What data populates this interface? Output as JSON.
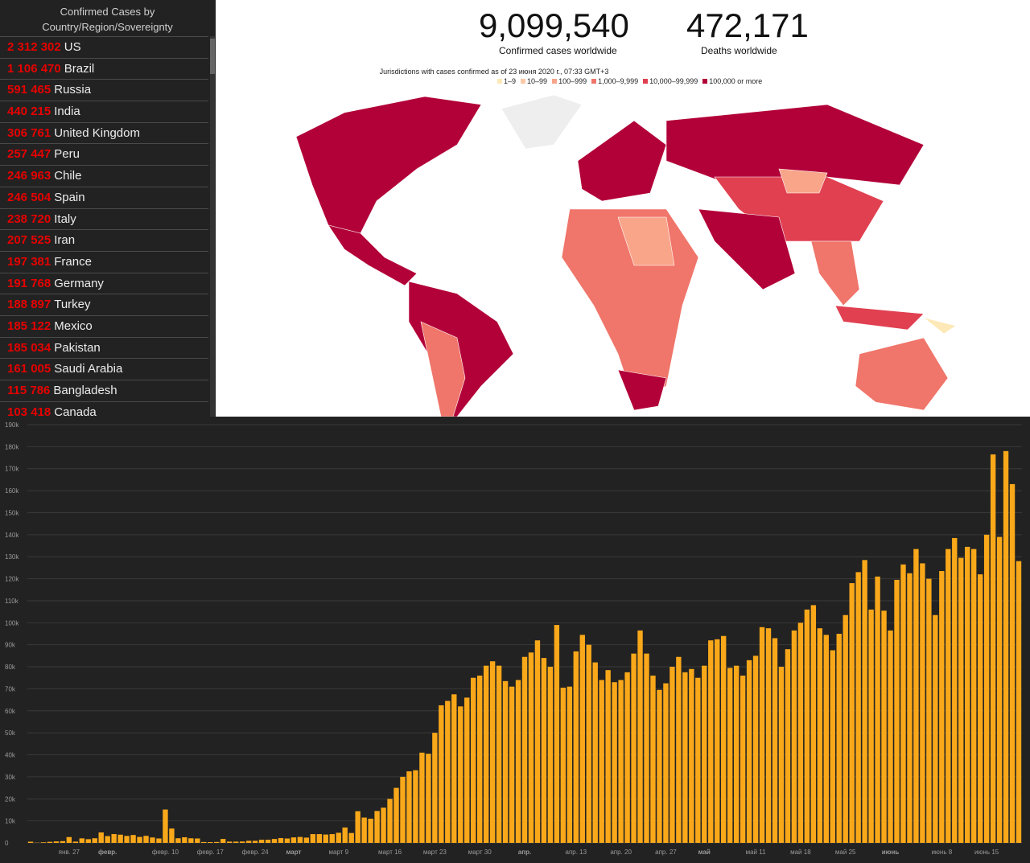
{
  "sidebar": {
    "title": "Confirmed Cases by Country/Region/Sovereignty",
    "rows": [
      [
        "2 312 302",
        "US"
      ],
      [
        "1 106 470",
        "Brazil"
      ],
      [
        "591 465",
        "Russia"
      ],
      [
        "440 215",
        "India"
      ],
      [
        "306 761",
        "United Kingdom"
      ],
      [
        "257 447",
        "Peru"
      ],
      [
        "246 963",
        "Chile"
      ],
      [
        "246 504",
        "Spain"
      ],
      [
        "238 720",
        "Italy"
      ],
      [
        "207 525",
        "Iran"
      ],
      [
        "197 381",
        "France"
      ],
      [
        "191 768",
        "Germany"
      ],
      [
        "188 897",
        "Turkey"
      ],
      [
        "185 122",
        "Mexico"
      ],
      [
        "185 034",
        "Pakistan"
      ],
      [
        "161 005",
        "Saudi Arabia"
      ],
      [
        "115 786",
        "Bangladesh"
      ],
      [
        "103 418",
        "Canada"
      ]
    ]
  },
  "header": {
    "cases": "9,099,540",
    "cases_label": "Confirmed cases worldwide",
    "deaths": "472,171",
    "deaths_label": "Deaths worldwide",
    "legend_title": "Jurisdictions with cases confirmed as of 23 июня 2020 г., 07:33 GMT+3",
    "legend": [
      {
        "label": "1–9",
        "color": "#fde9b8"
      },
      {
        "label": "10–99",
        "color": "#fcc9a6"
      },
      {
        "label": "100–999",
        "color": "#f8a58a"
      },
      {
        "label": "1,000–9,999",
        "color": "#f0756a"
      },
      {
        "label": "10,000–99,999",
        "color": "#e04050"
      },
      {
        "label": "100,000 or more",
        "color": "#b20038"
      }
    ]
  },
  "chart_data": {
    "type": "bar",
    "color": "#f9a81a",
    "grid": true,
    "categories": [
      null,
      null,
      null,
      null,
      null,
      null,
      "янв. 27",
      null,
      null,
      null,
      null,
      null,
      "февр.",
      null,
      null,
      null,
      null,
      null,
      null,
      null,
      null,
      "февр. 10",
      null,
      null,
      null,
      null,
      null,
      null,
      "февр. 17",
      null,
      null,
      null,
      null,
      null,
      null,
      "февр. 24",
      null,
      null,
      null,
      null,
      null,
      "март",
      null,
      null,
      null,
      null,
      null,
      null,
      "март 9",
      null,
      null,
      null,
      null,
      null,
      null,
      null,
      "март 16",
      null,
      null,
      null,
      null,
      null,
      null,
      "март 23",
      null,
      null,
      null,
      null,
      null,
      null,
      "март 30",
      null,
      null,
      null,
      null,
      null,
      null,
      "апр.",
      null,
      null,
      null,
      null,
      null,
      null,
      null,
      "апр. 13",
      null,
      null,
      null,
      null,
      null,
      null,
      "апр. 20",
      null,
      null,
      null,
      null,
      null,
      null,
      "апр. 27",
      null,
      null,
      null,
      null,
      null,
      "май",
      null,
      null,
      null,
      null,
      null,
      null,
      null,
      "май 11",
      null,
      null,
      null,
      null,
      null,
      null,
      "май 18",
      null,
      null,
      null,
      null,
      null,
      null,
      "май 25",
      null,
      null,
      null,
      null,
      null,
      null,
      "июнь",
      null,
      null,
      null,
      null,
      null,
      null,
      null,
      "июнь 8",
      null,
      null,
      null,
      null,
      null,
      null,
      "июнь 15",
      null,
      null,
      null,
      null,
      null
    ],
    "values": [
      555,
      99,
      287,
      493,
      684,
      809,
      2651,
      588,
      2068,
      1693,
      2111,
      4749,
      3094,
      4011,
      3741,
      3160,
      3592,
      2716,
      3210,
      2467,
      2015,
      15153,
      6526,
      2113,
      2562,
      2098,
      2017,
      410,
      365,
      426,
      1793,
      602,
      581,
      640,
      944,
      947,
      1421,
      1431,
      1781,
      2200,
      2000,
      2500,
      2700,
      2400,
      4000,
      4000,
      3800,
      4000,
      4600,
      7000,
      4500,
      14400,
      11500,
      11000,
      14500,
      16000,
      20000,
      25000,
      30000,
      32500,
      33000,
      41000,
      40500,
      50000,
      62500,
      64500,
      67500,
      62000,
      66000,
      75000,
      76000,
      80500,
      82500,
      80500,
      73500,
      71000,
      74000,
      84500,
      86500,
      92000,
      84000,
      80000,
      99000,
      70500,
      71000,
      87000,
      94500,
      90000,
      82000,
      74000,
      78500,
      73000,
      74000,
      77500,
      86000,
      96500,
      86000,
      76000,
      69500,
      72500,
      80000,
      84500,
      77500,
      79000,
      75000,
      80500,
      92000,
      92500,
      94000,
      79500,
      80500,
      76000,
      83000,
      85000,
      98000,
      97500,
      93000,
      80000,
      88000,
      96500,
      100000,
      106000,
      108000,
      97500,
      94500,
      87500,
      95000,
      103500,
      118000,
      123000,
      128500,
      106000,
      121000,
      105500,
      96500,
      119500,
      126500,
      122500,
      133500,
      127000,
      120000,
      103500,
      123500,
      133500,
      138500,
      129500,
      134500,
      133500,
      122000,
      140000,
      176500,
      139000,
      178000,
      163000,
      128000
    ],
    "ylim": [
      0,
      190000
    ],
    "yticks": [
      0,
      {
        "value": 10000,
        "label": "10k"
      },
      {
        "value": 20000,
        "label": "20k"
      },
      {
        "value": 30000,
        "label": "30k"
      },
      {
        "value": 40000,
        "label": "40k"
      },
      {
        "value": 50000,
        "label": "50k"
      },
      {
        "value": 60000,
        "label": "60k"
      },
      {
        "value": 70000,
        "label": "70k"
      },
      {
        "value": 80000,
        "label": "80k"
      },
      {
        "value": 90000,
        "label": "90k"
      },
      {
        "value": 100000,
        "label": "100k"
      },
      {
        "value": 110000,
        "label": "110k"
      },
      {
        "value": 120000,
        "label": "120k"
      },
      {
        "value": 130000,
        "label": "130k"
      },
      {
        "value": 140000,
        "label": "140k"
      },
      {
        "value": 150000,
        "label": "150k"
      },
      {
        "value": 160000,
        "label": "160k"
      },
      {
        "value": 170000,
        "label": "170k"
      },
      {
        "value": 180000,
        "label": "180k"
      },
      {
        "value": 190000,
        "label": "190k"
      }
    ]
  }
}
